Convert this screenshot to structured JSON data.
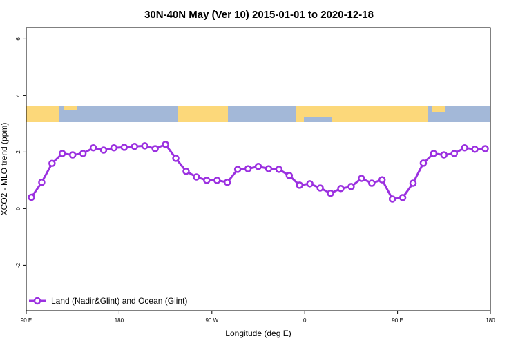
{
  "chart_data": {
    "type": "line",
    "title": "30N-40N May (Ver 10)   2015-01-01 to 2020-12-18",
    "x_label": "Longitude (deg E)",
    "y_label": "XCO2 - MLO trend (ppm)",
    "x": [
      95,
      105,
      115,
      125,
      135,
      145,
      155,
      165,
      175,
      185,
      195,
      205,
      215,
      225,
      235,
      245,
      255,
      265,
      275,
      285,
      295,
      305,
      315,
      325,
      335,
      345,
      355,
      365,
      375,
      385,
      395,
      405,
      415,
      425,
      435,
      445,
      455,
      465,
      475,
      485,
      495,
      505,
      515,
      525,
      535
    ],
    "series": [
      {
        "name": "Land (Nadir&Glint) and Ocean (Glint)",
        "color": "#9b30e0",
        "values": [
          0.4,
          0.93,
          1.6,
          1.95,
          1.9,
          1.95,
          2.15,
          2.07,
          2.15,
          2.17,
          2.2,
          2.22,
          2.12,
          2.27,
          1.78,
          1.32,
          1.12,
          1.0,
          1.0,
          0.93,
          1.39,
          1.41,
          1.49,
          1.41,
          1.39,
          1.17,
          0.83,
          0.88,
          0.73,
          0.54,
          0.71,
          0.78,
          1.07,
          0.9,
          1.02,
          0.34,
          0.39,
          0.9,
          1.61,
          1.95,
          1.9,
          1.95,
          2.15,
          2.1,
          2.12
        ]
      }
    ],
    "xlim": [
      90,
      540
    ],
    "xticks": [
      {
        "value": 90,
        "label": "90 E"
      },
      {
        "value": 180,
        "label": "180"
      },
      {
        "value": 270,
        "label": "90 W"
      },
      {
        "value": 360,
        "label": "0"
      },
      {
        "value": 450,
        "label": "90 E"
      },
      {
        "value": 540,
        "label": "180"
      }
    ],
    "ylim": [
      -3.6,
      6.4
    ],
    "yticks": [
      -2,
      0,
      2,
      4,
      6
    ],
    "legend": "bottom-left"
  }
}
